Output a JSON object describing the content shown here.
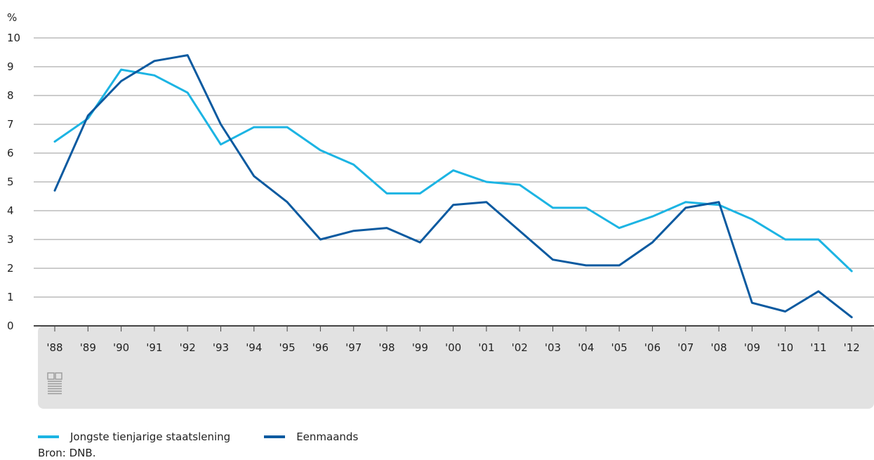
{
  "chart_data": {
    "type": "line",
    "unit_label": "%",
    "ylim": [
      0,
      10
    ],
    "yticks": [
      0,
      1,
      2,
      3,
      4,
      5,
      6,
      7,
      8,
      9,
      10
    ],
    "grid": true,
    "categories": [
      "'88",
      "'89",
      "'90",
      "'91",
      "'92",
      "'93",
      "'94",
      "'95",
      "'96",
      "'97",
      "'98",
      "'99",
      "'00",
      "'01",
      "'02",
      "'03",
      "'04",
      "'05",
      "'06",
      "'07",
      "'08",
      "'09",
      "'10",
      "'11",
      "'12"
    ],
    "series": [
      {
        "name": "Jongste tienjarige staatslening",
        "color": "#1cb4e3",
        "values": [
          6.4,
          7.2,
          8.9,
          8.7,
          8.1,
          6.3,
          6.9,
          6.9,
          6.1,
          5.6,
          4.6,
          4.6,
          5.4,
          5.0,
          4.9,
          4.1,
          4.1,
          3.4,
          3.8,
          4.3,
          4.2,
          3.7,
          3.0,
          3.0,
          1.9
        ]
      },
      {
        "name": "Eenmaands",
        "color": "#0b5aa0",
        "values": [
          4.7,
          7.3,
          8.5,
          9.2,
          9.4,
          7.0,
          5.2,
          4.3,
          3.0,
          3.3,
          3.4,
          2.9,
          4.2,
          4.3,
          3.3,
          2.3,
          2.1,
          2.1,
          2.9,
          4.1,
          4.3,
          0.8,
          0.5,
          1.2,
          0.3
        ]
      }
    ],
    "legend_position": "bottom-left",
    "source": "Bron: DNB."
  }
}
